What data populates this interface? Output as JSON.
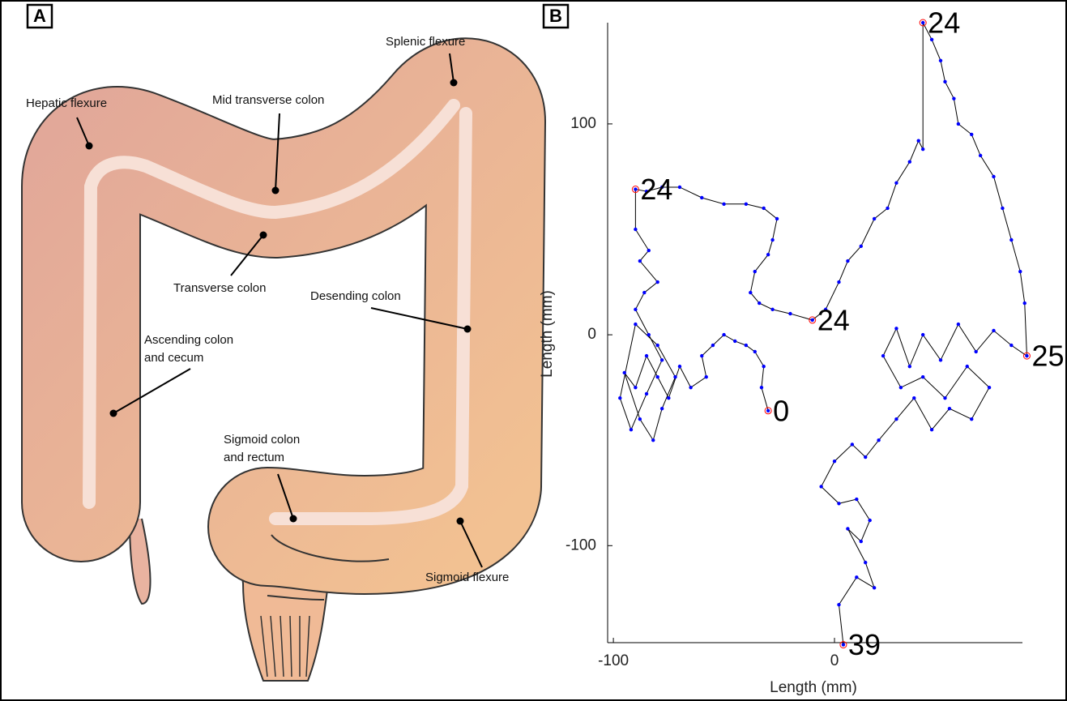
{
  "panel_labels": [
    "A",
    "B"
  ],
  "diagram": {
    "labels": [
      {
        "lines": [
          "Hepatic flexure"
        ]
      },
      {
        "lines": [
          "Mid transverse colon"
        ]
      },
      {
        "lines": [
          "Splenic flexure"
        ]
      },
      {
        "lines": [
          "Transverse colon"
        ]
      },
      {
        "lines": [
          "Desending colon"
        ]
      },
      {
        "lines": [
          "Ascending colon",
          "and cecum"
        ]
      },
      {
        "lines": [
          "Sigmoid colon",
          "and rectum"
        ]
      },
      {
        "lines": [
          "Sigmoid flexure"
        ]
      }
    ]
  },
  "chart_data": {
    "type": "line",
    "x_label": "Length (mm)",
    "y_label": "Length (mm)",
    "xlim": [
      -102.6,
      85
    ],
    "ylim": [
      -146,
      148
    ],
    "xticks": [
      -100,
      0
    ],
    "yticks": [
      -100,
      0,
      100
    ],
    "line_color": "#000000",
    "x": [
      -30,
      -33,
      -32,
      -36,
      -40,
      -45,
      -50,
      -55,
      -60,
      -58,
      -65,
      -70,
      -75,
      -80,
      -85,
      -90,
      -95,
      -88,
      -82,
      -78,
      -72,
      -80,
      -90,
      -97,
      -92,
      -85,
      -78,
      -84,
      -90,
      -86,
      -80,
      -88,
      -84,
      -90,
      -90,
      -85,
      -78,
      -70,
      -60,
      -50,
      -40,
      -32,
      -26,
      -28,
      -30,
      -36,
      -38,
      -34,
      -28,
      -20,
      -10,
      -4,
      2,
      6,
      12,
      18,
      24,
      28,
      34,
      38,
      40,
      40,
      44,
      48,
      50,
      54,
      56,
      62,
      66,
      72,
      76,
      80,
      84,
      86,
      87,
      80,
      72,
      64,
      56,
      48,
      40,
      34,
      28,
      22,
      30,
      40,
      50,
      60,
      70,
      62,
      52,
      44,
      36,
      28,
      20,
      14,
      8,
      0,
      -6,
      2,
      10,
      16,
      12,
      6,
      14,
      18,
      10,
      2,
      4
    ],
    "series": [
      {
        "color": "#0000ff",
        "values": [
          -36,
          -25,
          -15,
          -8,
          -5,
          -3,
          0,
          -5,
          -10,
          -20,
          -25,
          -15,
          -30,
          -20,
          -10,
          -25,
          -18,
          -40,
          -50,
          -35,
          -20,
          -5,
          5,
          -30,
          -45,
          -28,
          -12,
          0,
          12,
          20,
          25,
          35,
          40,
          50,
          69,
          68,
          70,
          70,
          65,
          62,
          62,
          60,
          55,
          45,
          38,
          30,
          20,
          15,
          12,
          10,
          7,
          12,
          25,
          35,
          42,
          55,
          60,
          72,
          82,
          92,
          88,
          148,
          140,
          130,
          120,
          112,
          100,
          95,
          85,
          75,
          60,
          45,
          30,
          15,
          -10,
          -5,
          2,
          -8,
          5,
          -12,
          0,
          -15,
          3,
          -10,
          -25,
          -20,
          -30,
          -15,
          -25,
          -40,
          -35,
          -45,
          -30,
          -40,
          -50,
          -58,
          -52,
          -60,
          -72,
          -80,
          -78,
          -88,
          -98,
          -92,
          -108,
          -120,
          -115,
          -128,
          -147
        ]
      }
    ],
    "annotations": [
      {
        "x": -30,
        "y": -36,
        "label": "0"
      },
      {
        "x": -90,
        "y": 69,
        "label": "24"
      },
      {
        "x": -10,
        "y": 7,
        "label": "24"
      },
      {
        "x": 40,
        "y": 148,
        "label": "24"
      },
      {
        "x": 87,
        "y": -10,
        "label": "25"
      },
      {
        "x": 4,
        "y": -147,
        "label": "39"
      }
    ]
  }
}
